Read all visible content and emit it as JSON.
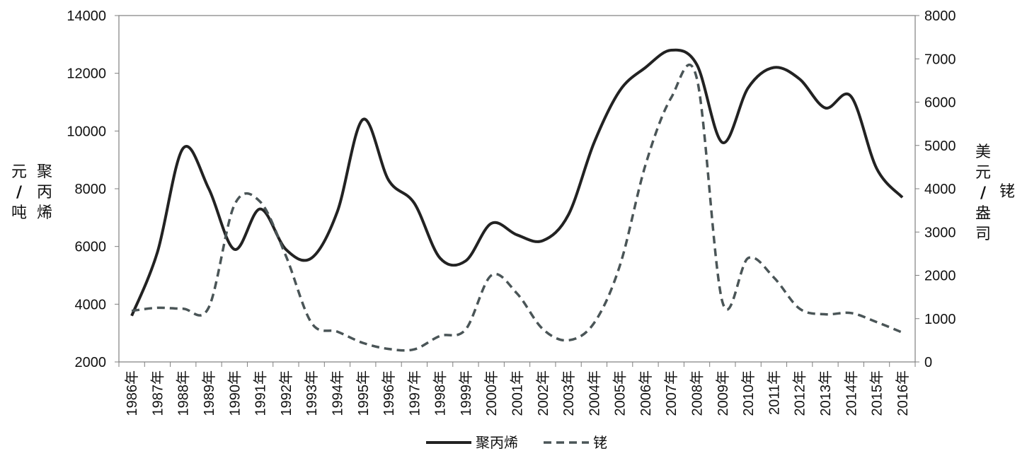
{
  "chart_data": {
    "type": "line",
    "title": "",
    "x": [
      "1986年",
      "1987年",
      "1988年",
      "1989年",
      "1990年",
      "1991年",
      "1992年",
      "1993年",
      "1994年",
      "1995年",
      "1996年",
      "1997年",
      "1998年",
      "1999年",
      "2000年",
      "2001年",
      "2002年",
      "2003年",
      "2004年",
      "2005年",
      "2006年",
      "2007年",
      "2008年",
      "2009年",
      "2010年",
      "2011年",
      "2012年",
      "2013年",
      "2014年",
      "2015年",
      "2016年"
    ],
    "left_axis": {
      "label_chars": [
        "元",
        "/",
        "吨"
      ],
      "series_label_chars": [
        "聚",
        "丙",
        "烯"
      ],
      "ylim": [
        2000,
        14000
      ],
      "ticks": [
        "2000",
        "4000",
        "6000",
        "8000",
        "10000",
        "12000",
        "14000"
      ]
    },
    "right_axis": {
      "label_chars": [
        "美",
        "元",
        "/",
        "盎",
        "司"
      ],
      "series_label_chars": [
        "铑"
      ],
      "ylim": [
        0,
        8000
      ],
      "ticks": [
        "0",
        "1000",
        "2000",
        "3000",
        "4000",
        "5000",
        "6000",
        "7000",
        "8000"
      ]
    },
    "series": [
      {
        "name": "聚丙烯",
        "axis": "left",
        "style": "solid",
        "color": "#222222",
        "values": [
          3600,
          5800,
          9400,
          8000,
          5900,
          7300,
          5900,
          5600,
          7200,
          10400,
          8300,
          7500,
          5600,
          5500,
          6800,
          6400,
          6200,
          7100,
          9600,
          11400,
          12200,
          12800,
          12300,
          9600,
          11500,
          12200,
          11800,
          10800,
          11200,
          8700,
          7700
        ]
      },
      {
        "name": "铑",
        "axis": "right",
        "style": "dashed",
        "color": "#4a5557",
        "values": [
          1180,
          1250,
          1230,
          1260,
          3630,
          3700,
          2450,
          900,
          700,
          440,
          300,
          290,
          600,
          750,
          2000,
          1580,
          760,
          500,
          900,
          2220,
          4550,
          6100,
          6550,
          1380,
          2400,
          1950,
          1230,
          1100,
          1130,
          920,
          680
        ]
      }
    ],
    "legend": {
      "position": "bottom",
      "items": [
        "聚丙烯",
        "铑"
      ]
    },
    "grid": false
  }
}
